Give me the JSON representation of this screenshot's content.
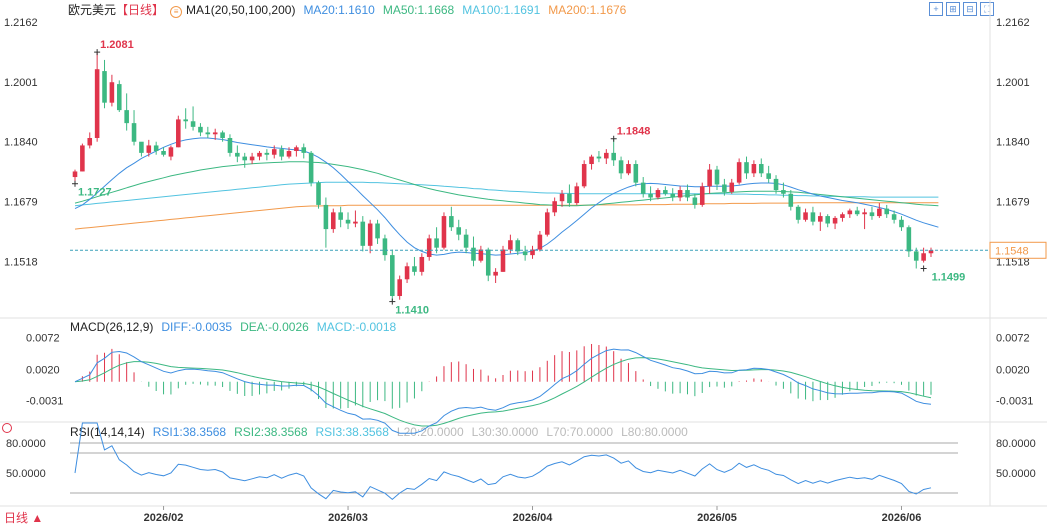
{
  "header": {
    "symbol": "欧元美元",
    "period": "【日线】",
    "ma_label": "MA1(20,50,100,200)",
    "ma20": "MA20:1.1610",
    "ma50": "MA50:1.1668",
    "ma100": "MA100:1.1691",
    "ma200": "MA200:1.1676"
  },
  "macd_header": {
    "label": "MACD(26,12,9)",
    "diff": "DIFF:-0.0035",
    "dea": "DEA:-0.0026",
    "macd": "MACD:-0.0018"
  },
  "rsi_header": {
    "label": "RSI(14,14,14)",
    "rsi1": "RSI1:38.3568",
    "rsi2": "RSI2:38.3568",
    "rsi3": "RSI3:38.3568",
    "l20": "L20:20.0000",
    "l30": "L30:30.0000",
    "l70": "L70:70.0000",
    "l80": "L80:80.0000"
  },
  "footer": {
    "period_menu": "日线 ▲"
  },
  "toolbar_icons": [
    "crosshair-icon",
    "zoom-in-icon",
    "zoom-out-icon",
    "fullscreen-icon"
  ],
  "colors": {
    "up": "#e0344b",
    "down": "#3cb882",
    "ma20": "#3e8ee0",
    "ma50": "#3cb882",
    "ma100": "#52c3e0",
    "ma200": "#f2994a",
    "dea": "#3cb882",
    "diff": "#3e8ee0",
    "last_price": "#f2994a",
    "grid": "#d8d8d8"
  },
  "chart_data": {
    "type": "candlestick",
    "x_tick_labels": [
      "2026/02",
      "2026/03",
      "2026/04",
      "2026/05",
      "2026/06"
    ],
    "price_axis_ticks": [
      "1.2162",
      "1.2001",
      "1.1840",
      "1.1679",
      "1.1518"
    ],
    "last_price": "1.1548",
    "annotations": {
      "high": "1.2081",
      "low": "1.1410",
      "swing_high": "1.1848",
      "start_low": "1.1727",
      "recent_low": "1.1499"
    },
    "ohlc": [
      [
        1.1745,
        1.1765,
        1.1725,
        1.176
      ],
      [
        1.176,
        1.1835,
        1.176,
        1.183
      ],
      [
        1.183,
        1.1865,
        1.1822,
        1.185
      ],
      [
        1.185,
        1.2081,
        1.184,
        1.2035
      ],
      [
        1.203,
        1.206,
        1.193,
        1.1945
      ],
      [
        1.1945,
        1.202,
        1.1935,
        1.2
      ],
      [
        1.1995,
        1.2005,
        1.192,
        1.1925
      ],
      [
        1.1925,
        1.197,
        1.187,
        1.189
      ],
      [
        1.189,
        1.1925,
        1.183,
        1.184
      ],
      [
        1.184,
        1.1835,
        1.18,
        1.181
      ],
      [
        1.181,
        1.1845,
        1.18,
        1.183
      ],
      [
        1.183,
        1.184,
        1.1805,
        1.1815
      ],
      [
        1.1815,
        1.1825,
        1.18,
        1.1805
      ],
      [
        1.18,
        1.183,
        1.179,
        1.1825
      ],
      [
        1.1825,
        1.191,
        1.1825,
        1.19
      ],
      [
        1.19,
        1.193,
        1.1875,
        1.1895
      ],
      [
        1.1895,
        1.1935,
        1.187,
        1.188
      ],
      [
        1.188,
        1.189,
        1.1855,
        1.1865
      ],
      [
        1.1865,
        1.188,
        1.185,
        1.186
      ],
      [
        1.186,
        1.1875,
        1.1845,
        1.1865
      ],
      [
        1.1865,
        1.187,
        1.184,
        1.185
      ],
      [
        1.185,
        1.186,
        1.18,
        1.181
      ],
      [
        1.181,
        1.183,
        1.1785,
        1.18
      ],
      [
        1.18,
        1.181,
        1.177,
        1.179
      ],
      [
        1.179,
        1.181,
        1.178,
        1.18
      ],
      [
        1.18,
        1.1815,
        1.179,
        1.181
      ],
      [
        1.181,
        1.182,
        1.179,
        1.1805
      ],
      [
        1.1805,
        1.183,
        1.1795,
        1.182
      ],
      [
        1.182,
        1.183,
        1.179,
        1.18
      ],
      [
        1.18,
        1.1825,
        1.1795,
        1.1815
      ],
      [
        1.1815,
        1.183,
        1.18,
        1.1825
      ],
      [
        1.1825,
        1.1835,
        1.1795,
        1.181
      ],
      [
        1.181,
        1.1815,
        1.172,
        1.173
      ],
      [
        1.173,
        1.1735,
        1.166,
        1.167
      ],
      [
        1.167,
        1.169,
        1.1555,
        1.1605
      ],
      [
        1.1605,
        1.166,
        1.1595,
        1.165
      ],
      [
        1.165,
        1.1665,
        1.161,
        1.163
      ],
      [
        1.163,
        1.165,
        1.1605,
        1.162
      ],
      [
        1.162,
        1.1655,
        1.161,
        1.1625
      ],
      [
        1.1625,
        1.164,
        1.1545,
        1.156
      ],
      [
        1.156,
        1.163,
        1.154,
        1.162
      ],
      [
        1.162,
        1.163,
        1.1565,
        1.158
      ],
      [
        1.158,
        1.159,
        1.152,
        1.1535
      ],
      [
        1.1535,
        1.155,
        1.141,
        1.1425
      ],
      [
        1.1425,
        1.148,
        1.1415,
        1.147
      ],
      [
        1.147,
        1.1515,
        1.146,
        1.1505
      ],
      [
        1.1505,
        1.153,
        1.148,
        1.149
      ],
      [
        1.149,
        1.154,
        1.148,
        1.153
      ],
      [
        1.153,
        1.159,
        1.152,
        1.158
      ],
      [
        1.158,
        1.161,
        1.154,
        1.1555
      ],
      [
        1.1555,
        1.165,
        1.155,
        1.164
      ],
      [
        1.164,
        1.1665,
        1.16,
        1.161
      ],
      [
        1.161,
        1.163,
        1.1575,
        1.159
      ],
      [
        1.159,
        1.1605,
        1.154,
        1.1555
      ],
      [
        1.1555,
        1.1585,
        1.1505,
        1.152
      ],
      [
        1.152,
        1.156,
        1.1515,
        1.155
      ],
      [
        1.155,
        1.1555,
        1.1465,
        1.148
      ],
      [
        1.148,
        1.15,
        1.146,
        1.149
      ],
      [
        1.149,
        1.156,
        1.149,
        1.155
      ],
      [
        1.155,
        1.159,
        1.154,
        1.1575
      ],
      [
        1.1575,
        1.158,
        1.1535,
        1.1545
      ],
      [
        1.1545,
        1.156,
        1.152,
        1.1535
      ],
      [
        1.1535,
        1.156,
        1.1525,
        1.155
      ],
      [
        1.155,
        1.16,
        1.1545,
        1.159
      ],
      [
        1.159,
        1.166,
        1.1585,
        1.165
      ],
      [
        1.165,
        1.169,
        1.164,
        1.168
      ],
      [
        1.168,
        1.171,
        1.1665,
        1.17
      ],
      [
        1.17,
        1.1725,
        1.1665,
        1.1675
      ],
      [
        1.1675,
        1.173,
        1.167,
        1.172
      ],
      [
        1.172,
        1.179,
        1.1715,
        1.178
      ],
      [
        1.178,
        1.1805,
        1.1765,
        1.18
      ],
      [
        1.18,
        1.1815,
        1.1785,
        1.1795
      ],
      [
        1.1795,
        1.182,
        1.178,
        1.181
      ],
      [
        1.181,
        1.1848,
        1.1775,
        1.179
      ],
      [
        1.179,
        1.18,
        1.174,
        1.1755
      ],
      [
        1.1755,
        1.179,
        1.175,
        1.178
      ],
      [
        1.178,
        1.179,
        1.172,
        1.173
      ],
      [
        1.173,
        1.1745,
        1.169,
        1.17
      ],
      [
        1.17,
        1.172,
        1.168,
        1.169
      ],
      [
        1.169,
        1.1715,
        1.1685,
        1.171
      ],
      [
        1.171,
        1.172,
        1.1695,
        1.17
      ],
      [
        1.17,
        1.1715,
        1.168,
        1.169
      ],
      [
        1.169,
        1.172,
        1.168,
        1.171
      ],
      [
        1.171,
        1.1725,
        1.168,
        1.169
      ],
      [
        1.169,
        1.17,
        1.166,
        1.167
      ],
      [
        1.167,
        1.173,
        1.1665,
        1.172
      ],
      [
        1.172,
        1.178,
        1.17,
        1.1765
      ],
      [
        1.1765,
        1.1775,
        1.171,
        1.1725
      ],
      [
        1.1725,
        1.174,
        1.1695,
        1.1705
      ],
      [
        1.1705,
        1.174,
        1.17,
        1.173
      ],
      [
        1.173,
        1.1795,
        1.1725,
        1.1785
      ],
      [
        1.1785,
        1.18,
        1.174,
        1.1755
      ],
      [
        1.1755,
        1.179,
        1.1745,
        1.178
      ],
      [
        1.178,
        1.1795,
        1.1745,
        1.1755
      ],
      [
        1.1755,
        1.1775,
        1.173,
        1.174
      ],
      [
        1.174,
        1.175,
        1.17,
        1.171
      ],
      [
        1.171,
        1.173,
        1.169,
        1.17
      ],
      [
        1.17,
        1.171,
        1.1655,
        1.1665
      ],
      [
        1.1665,
        1.167,
        1.162,
        1.163
      ],
      [
        1.163,
        1.166,
        1.1625,
        1.165
      ],
      [
        1.165,
        1.1665,
        1.1615,
        1.1625
      ],
      [
        1.1625,
        1.165,
        1.16,
        1.164
      ],
      [
        1.164,
        1.1645,
        1.161,
        1.162
      ],
      [
        1.162,
        1.164,
        1.1605,
        1.1635
      ],
      [
        1.1635,
        1.165,
        1.1625,
        1.1645
      ],
      [
        1.1645,
        1.166,
        1.1635,
        1.1655
      ],
      [
        1.1655,
        1.1665,
        1.164,
        1.1645
      ],
      [
        1.1645,
        1.166,
        1.1605,
        1.165
      ],
      [
        1.165,
        1.1665,
        1.163,
        1.164
      ],
      [
        1.164,
        1.1675,
        1.1635,
        1.166
      ],
      [
        1.166,
        1.167,
        1.1635,
        1.1645
      ],
      [
        1.1645,
        1.1655,
        1.162,
        1.163
      ],
      [
        1.163,
        1.164,
        1.16,
        1.161
      ],
      [
        1.161,
        1.1615,
        1.153,
        1.1545
      ],
      [
        1.1545,
        1.1555,
        1.1499,
        1.152
      ],
      [
        1.152,
        1.1555,
        1.1515,
        1.154
      ],
      [
        1.154,
        1.1555,
        1.153,
        1.1548
      ]
    ],
    "ma20": [
      1.166,
      1.167,
      1.1685,
      1.1702,
      1.172,
      1.1738,
      1.1755,
      1.177,
      1.1782,
      1.1795,
      1.1805,
      1.1815,
      1.1825,
      1.1833,
      1.184,
      1.1845,
      1.1848,
      1.185,
      1.185,
      1.1848,
      1.1846,
      1.1842,
      1.1838,
      1.1835,
      1.1832,
      1.1829,
      1.1826,
      1.1824,
      1.1822,
      1.182,
      1.1818,
      1.1815,
      1.1808,
      1.1798,
      1.1785,
      1.177,
      1.1752,
      1.1733,
      1.1715,
      1.1695,
      1.1676,
      1.1657,
      1.1636,
      1.1612,
      1.159,
      1.157,
      1.1555,
      1.1545,
      1.1538,
      1.1535,
      1.1537,
      1.1541,
      1.1543,
      1.1542,
      1.154,
      1.1539,
      1.1537,
      1.1535,
      1.1536,
      1.1538,
      1.154,
      1.1542,
      1.1546,
      1.1553,
      1.1565,
      1.158,
      1.1597,
      1.1612,
      1.1628,
      1.1645,
      1.1662,
      1.1676,
      1.169,
      1.1701,
      1.171,
      1.1718,
      1.1724,
      1.1727,
      1.1728,
      1.1727,
      1.1725,
      1.1723,
      1.1721,
      1.172,
      1.1719,
      1.1719,
      1.172,
      1.172,
      1.172,
      1.1721,
      1.1723,
      1.1726,
      1.1728,
      1.1729,
      1.1729,
      1.1728,
      1.1724,
      1.1718,
      1.1711,
      1.1705,
      1.1699,
      1.1694,
      1.169,
      1.1686,
      1.1682,
      1.1679,
      1.1676,
      1.1672,
      1.1668,
      1.1663,
      1.1658,
      1.1652,
      1.1645,
      1.1637,
      1.1629,
      1.1622,
      1.1616,
      1.161
    ],
    "ma50": [
      1.1675,
      1.168,
      1.1686,
      1.1692,
      1.1698,
      1.1704,
      1.171,
      1.1716,
      1.1722,
      1.1728,
      1.1733,
      1.1738,
      1.1743,
      1.1748,
      1.1752,
      1.1756,
      1.176,
      1.1764,
      1.1767,
      1.177,
      1.1773,
      1.1775,
      1.1777,
      1.1779,
      1.1781,
      1.1782,
      1.1783,
      1.1784,
      1.1785,
      1.1786,
      1.1786,
      1.1786,
      1.1785,
      1.1784,
      1.1782,
      1.1779,
      1.1776,
      1.1773,
      1.1769,
      1.1765,
      1.176,
      1.1755,
      1.1749,
      1.1743,
      1.1737,
      1.1731,
      1.1725,
      1.1719,
      1.1714,
      1.1709,
      1.1705,
      1.1701,
      1.1697,
      1.1694,
      1.1691,
      1.1688,
      1.1685,
      1.1683,
      1.1681,
      1.1679,
      1.1677,
      1.1675,
      1.1673,
      1.1671,
      1.167,
      1.1669,
      1.1668,
      1.1668,
      1.1668,
      1.1669,
      1.167,
      1.1671,
      1.1673,
      1.1675,
      1.1677,
      1.1679,
      1.1681,
      1.1683,
      1.1685,
      1.1687,
      1.1689,
      1.1691,
      1.1693,
      1.1695,
      1.1697,
      1.1699,
      1.1701,
      1.1702,
      1.1703,
      1.1704,
      1.1705,
      1.1706,
      1.1707,
      1.1707,
      1.1707,
      1.1707,
      1.1706,
      1.1705,
      1.1704,
      1.1702,
      1.17,
      1.1698,
      1.1696,
      1.1694,
      1.1692,
      1.169,
      1.1688,
      1.1686,
      1.1684,
      1.1682,
      1.168,
      1.1678,
      1.1676,
      1.1674,
      1.1672,
      1.167,
      1.1669,
      1.1668
    ],
    "ma100": [
      1.1668,
      1.167,
      1.1672,
      1.1674,
      1.1676,
      1.1678,
      1.168,
      1.1682,
      1.1684,
      1.1686,
      1.1688,
      1.169,
      1.1692,
      1.1694,
      1.1696,
      1.1698,
      1.17,
      1.1702,
      1.1704,
      1.1706,
      1.1708,
      1.171,
      1.1712,
      1.1714,
      1.1716,
      1.1718,
      1.172,
      1.1722,
      1.1724,
      1.1726,
      1.1727,
      1.1728,
      1.1729,
      1.173,
      1.1731,
      1.1731,
      1.1731,
      1.1731,
      1.1731,
      1.1731,
      1.173,
      1.173,
      1.1729,
      1.1728,
      1.1727,
      1.1726,
      1.1725,
      1.1724,
      1.1723,
      1.1722,
      1.172,
      1.1719,
      1.1717,
      1.1716,
      1.1714,
      1.1713,
      1.1711,
      1.171,
      1.1708,
      1.1707,
      1.1706,
      1.1705,
      1.1704,
      1.1703,
      1.1702,
      1.1702,
      1.1701,
      1.1701,
      1.17,
      1.17,
      1.17,
      1.17,
      1.17,
      1.17,
      1.17,
      1.17,
      1.17,
      1.17,
      1.17,
      1.17,
      1.17,
      1.17,
      1.17,
      1.17,
      1.17,
      1.17,
      1.17,
      1.17,
      1.17,
      1.1699,
      1.1699,
      1.1699,
      1.1698,
      1.1698,
      1.1697,
      1.1697,
      1.1696,
      1.1696,
      1.1695,
      1.1695,
      1.1694,
      1.1694,
      1.1693,
      1.1693,
      1.1692,
      1.1692,
      1.1692,
      1.1692,
      1.1691,
      1.1691,
      1.1691,
      1.1691,
      1.1691,
      1.1691,
      1.1691,
      1.1691,
      1.1691,
      1.1691
    ],
    "ma200": [
      1.1605,
      1.1607,
      1.1609,
      1.1611,
      1.1613,
      1.1615,
      1.1617,
      1.1619,
      1.1621,
      1.1623,
      1.1625,
      1.1627,
      1.1629,
      1.1631,
      1.1633,
      1.1635,
      1.1637,
      1.1639,
      1.1641,
      1.1643,
      1.1645,
      1.1647,
      1.1649,
      1.1651,
      1.1653,
      1.1655,
      1.1657,
      1.1659,
      1.1661,
      1.1663,
      1.1665,
      1.1666,
      1.1667,
      1.1667,
      1.1668,
      1.1668,
      1.1668,
      1.1669,
      1.1669,
      1.1669,
      1.1669,
      1.1669,
      1.1669,
      1.1669,
      1.1669,
      1.1669,
      1.1669,
      1.1669,
      1.1669,
      1.1669,
      1.1669,
      1.1669,
      1.1669,
      1.1669,
      1.1669,
      1.1669,
      1.1669,
      1.1669,
      1.1669,
      1.1669,
      1.1669,
      1.1669,
      1.1669,
      1.1669,
      1.1669,
      1.1669,
      1.1669,
      1.1669,
      1.1669,
      1.1669,
      1.1669,
      1.167,
      1.167,
      1.167,
      1.167,
      1.167,
      1.167,
      1.1671,
      1.1671,
      1.1671,
      1.1671,
      1.1672,
      1.1672,
      1.1672,
      1.1672,
      1.1673,
      1.1673,
      1.1673,
      1.1673,
      1.1674,
      1.1674,
      1.1674,
      1.1674,
      1.1675,
      1.1675,
      1.1675,
      1.1675,
      1.1675,
      1.1676,
      1.1676,
      1.1676,
      1.1676,
      1.1676,
      1.1676,
      1.1676,
      1.1676,
      1.1676,
      1.1676,
      1.1676,
      1.1676,
      1.1676,
      1.1676,
      1.1676,
      1.1676,
      1.1676,
      1.1676,
      1.1676,
      1.1676
    ],
    "macd_axis_ticks": [
      "0.0072",
      "0.0020",
      "-0.0031"
    ],
    "macd_ylim": [
      -0.0056,
      0.0078
    ],
    "rsi_axis_ticks": [
      "80.0000",
      "50.0000"
    ],
    "rsi_ylim": [
      20,
      85
    ]
  }
}
